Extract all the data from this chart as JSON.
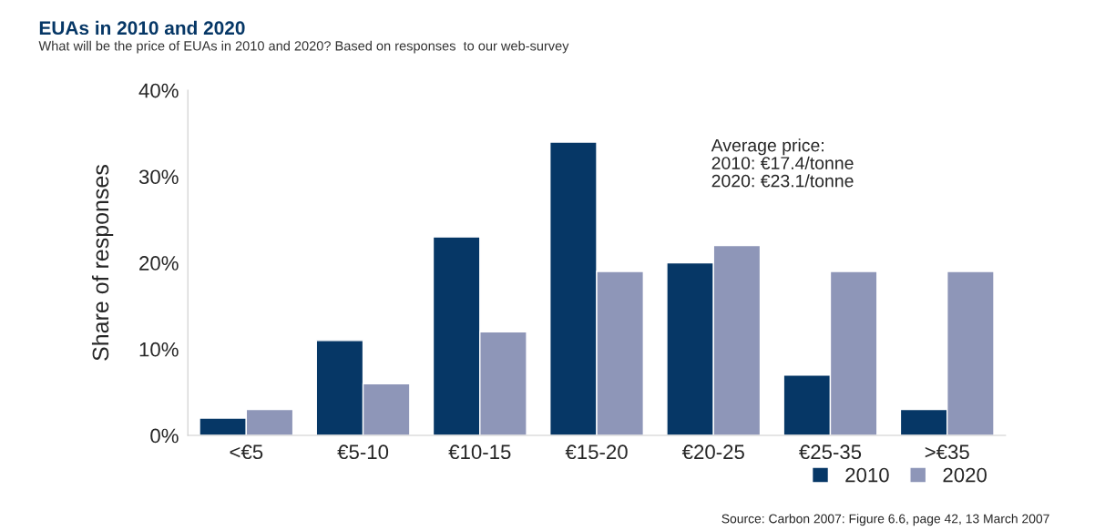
{
  "chart_data": {
    "type": "bar",
    "title": "EUAs in 2010 and 2020",
    "subtitle": "What will be the price of EUAs in 2010 and 2020? Based on responses  to our web-survey",
    "ylabel": "Share of responses",
    "categories": [
      "<€5",
      "€5-10",
      "€10-15",
      "€15-20",
      "€20-25",
      "€25-35",
      ">€35"
    ],
    "series": [
      {
        "name": "2010",
        "color": "#063766",
        "values": [
          2,
          11,
          23,
          34,
          20,
          7,
          3
        ]
      },
      {
        "name": "2020",
        "color": "#8e96b8",
        "values": [
          3,
          6,
          12,
          19,
          22,
          19,
          19
        ]
      }
    ],
    "ylim": [
      0,
      40
    ],
    "yticks": [
      {
        "value": 0,
        "label": "0%"
      },
      {
        "value": 10,
        "label": "10%"
      },
      {
        "value": 20,
        "label": "20%"
      },
      {
        "value": 30,
        "label": "30%"
      },
      {
        "value": 40,
        "label": "40%"
      }
    ],
    "grid": false,
    "legend": "bottom right",
    "annotations": [
      "Average price:\n2010: €17.4/tonne\n2020: €23.1/tonne",
      "Source: Carbon 2007: Figure 6.6, page 42, 13 March 2007"
    ]
  }
}
